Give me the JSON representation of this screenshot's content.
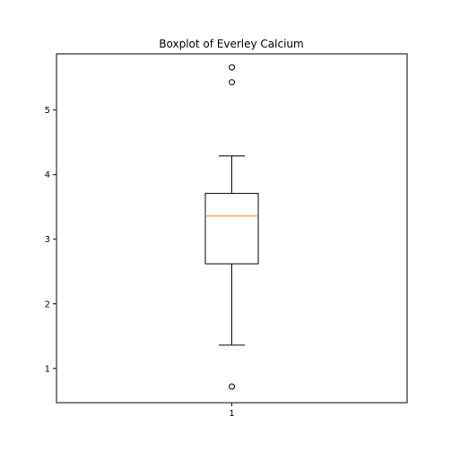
{
  "chart_data": {
    "type": "boxplot",
    "title": "Boxplot of Everley Calcium",
    "xlabel": "",
    "ylabel": "",
    "categories": [
      "1"
    ],
    "ylim": [
      0.47,
      5.87
    ],
    "yticks": [
      1,
      2,
      3,
      4,
      5
    ],
    "grid": false,
    "boxes": [
      {
        "category": "1",
        "whisker_low": 1.36,
        "q1": 2.62,
        "median": 3.36,
        "q3": 3.71,
        "whisker_high": 4.29,
        "outliers": [
          0.72,
          5.43,
          5.66
        ]
      }
    ],
    "colors": {
      "box": "#000000",
      "median": "#ff7f0e",
      "axes": "#000000",
      "background": "#ffffff"
    }
  }
}
